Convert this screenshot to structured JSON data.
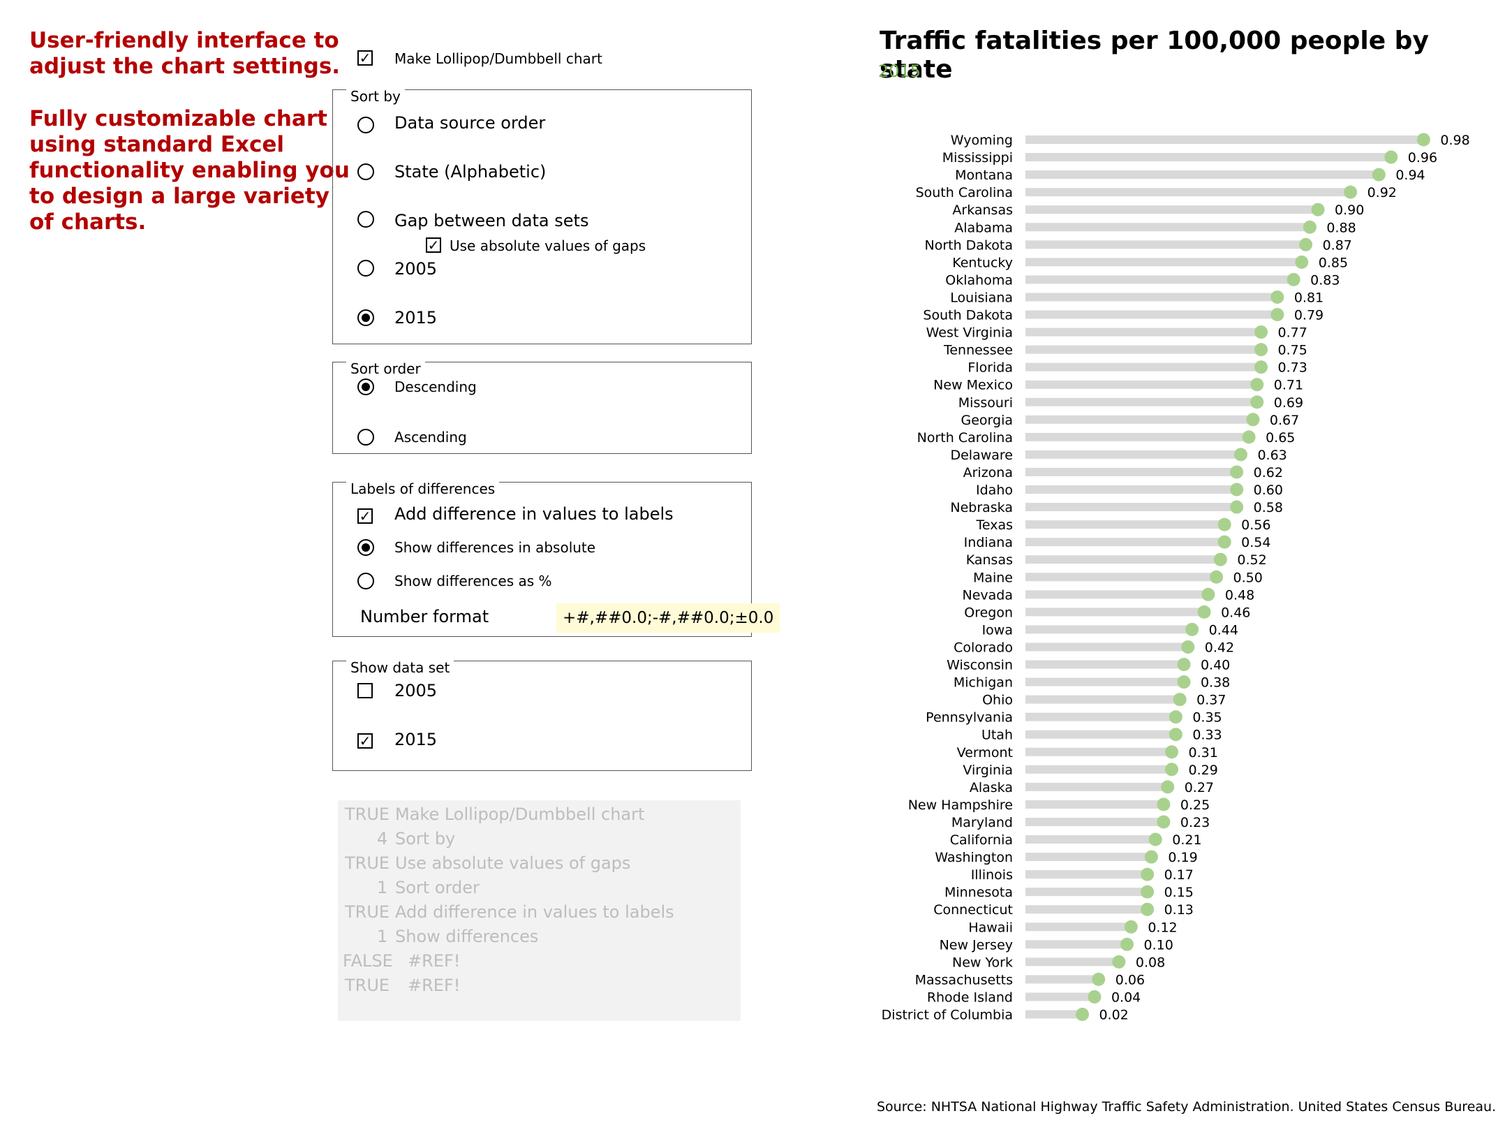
{
  "notes": {
    "line1": "User-friendly interface to",
    "line2": "adjust the chart settings.",
    "line3": "Fully customizable chart",
    "line4": "using standard Excel",
    "line5": "functionality enabling you",
    "line6": "to design a large variety",
    "line7": "of charts."
  },
  "controls": {
    "make_chart": {
      "label": "Make Lollipop/Dumbbell  chart",
      "checked": true
    },
    "sort_by": {
      "legend": "Sort by",
      "options": [
        "Data source order",
        "State (Alphabetic)",
        "Gap between data sets",
        "2005",
        "2015"
      ],
      "selected": 4,
      "abs_gaps": {
        "label": "Use absolute values of gaps",
        "checked": true
      }
    },
    "sort_order": {
      "legend": "Sort order",
      "options": [
        "Descending",
        "Ascending"
      ],
      "selected": 0
    },
    "labels_diff": {
      "legend": "Labels of differences",
      "add_diff": {
        "label": "Add difference in values to labels",
        "checked": true
      },
      "options": [
        "Show differences in absolute",
        "Show differences as %"
      ],
      "selected": 0,
      "number_format_label": "Number format",
      "number_format_value": "+#,##0.0;-#,##0.0;±0.0"
    },
    "show_data": {
      "legend": "Show data set",
      "items": [
        {
          "label": "2005",
          "checked": false
        },
        {
          "label": "2015",
          "checked": true
        }
      ]
    }
  },
  "linked_cells": [
    {
      "value": "TRUE",
      "label": "Make Lollipop/Dumbbell chart"
    },
    {
      "value": "4",
      "label": "Sort by"
    },
    {
      "value": "TRUE",
      "label": "Use absolute values of gaps"
    },
    {
      "value": "1",
      "label": "Sort order"
    },
    {
      "value": "TRUE",
      "label": "Add difference in values to labels"
    },
    {
      "value": "1",
      "label": "Show differences"
    },
    {
      "value": "FALSE",
      "label": "#REF!"
    },
    {
      "value": "TRUE",
      "label": "#REF!"
    }
  ],
  "chart_data": {
    "type": "lollipop",
    "title": "Traffic fatalities per 100,000 people by state",
    "subtitle": "2015",
    "source": "Source: NHTSA National Highway Traffic Safety Administration. United States Census Bureau.",
    "xlim": [
      0,
      1
    ],
    "colors": {
      "dot": "#a9d18e",
      "bar": "#d9d9d9",
      "subtitle": "#70ad47"
    },
    "categories": [
      "Wyoming",
      "Mississippi",
      "Montana",
      "South Carolina",
      "Arkansas",
      "Alabama",
      "North Dakota",
      "Kentucky",
      "Oklahoma",
      "Louisiana",
      "South Dakota",
      "West Virginia",
      "Tennessee",
      "Florida",
      "New Mexico",
      "Missouri",
      "Georgia",
      "North Carolina",
      "Delaware",
      "Arizona",
      "Idaho",
      "Nebraska",
      "Texas",
      "Indiana",
      "Kansas",
      "Maine",
      "Nevada",
      "Oregon",
      "Iowa",
      "Colorado",
      "Wisconsin",
      "Michigan",
      "Ohio",
      "Pennsylvania",
      "Utah",
      "Vermont",
      "Virginia",
      "Alaska",
      "New Hampshire",
      "Maryland",
      "California",
      "Washington",
      "Illinois",
      "Minnesota",
      "Connecticut",
      "Hawaii",
      "New Jersey",
      "New York",
      "Massachusetts",
      "Rhode Island",
      "District of Columbia"
    ],
    "labels": [
      "0.98",
      "0.96",
      "0.94",
      "0.92",
      "0.90",
      "0.88",
      "0.87",
      "0.85",
      "0.83",
      "0.81",
      "0.79",
      "0.77",
      "0.75",
      "0.73",
      "0.71",
      "0.69",
      "0.67",
      "0.65",
      "0.63",
      "0.62",
      "0.60",
      "0.58",
      "0.56",
      "0.54",
      "0.52",
      "0.50",
      "0.48",
      "0.46",
      "0.44",
      "0.42",
      "0.40",
      "0.38",
      "0.37",
      "0.35",
      "0.33",
      "0.31",
      "0.29",
      "0.27",
      "0.25",
      "0.23",
      "0.21",
      "0.19",
      "0.17",
      "0.15",
      "0.13",
      "0.12",
      "0.10",
      "0.08",
      "0.06",
      "0.04",
      "0.02"
    ],
    "values": [
      0.98,
      0.9,
      0.87,
      0.8,
      0.72,
      0.7,
      0.69,
      0.68,
      0.66,
      0.62,
      0.62,
      0.58,
      0.58,
      0.58,
      0.57,
      0.57,
      0.56,
      0.55,
      0.53,
      0.52,
      0.52,
      0.52,
      0.49,
      0.49,
      0.48,
      0.47,
      0.45,
      0.44,
      0.41,
      0.4,
      0.39,
      0.39,
      0.38,
      0.37,
      0.37,
      0.36,
      0.36,
      0.35,
      0.34,
      0.34,
      0.32,
      0.31,
      0.3,
      0.3,
      0.3,
      0.26,
      0.25,
      0.23,
      0.18,
      0.17,
      0.14
    ]
  }
}
